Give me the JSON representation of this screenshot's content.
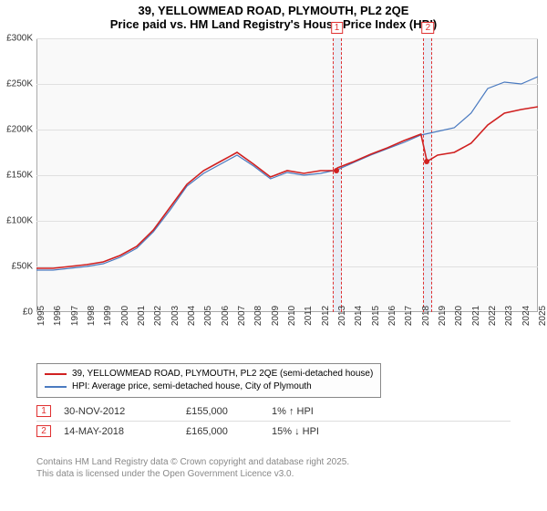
{
  "title_line1": "39, YELLOWMEAD ROAD, PLYMOUTH, PL2 2QE",
  "title_line2": "Price paid vs. HM Land Registry's House Price Index (HPI)",
  "chart": {
    "type": "line",
    "background_color": "#f9f9f9",
    "grid_color": "#e0e0e0",
    "border_color": "#aaaaaa",
    "ylim": [
      0,
      300000
    ],
    "ytick_step": 50000,
    "yticks": [
      "£0",
      "£50K",
      "£100K",
      "£150K",
      "£200K",
      "£250K",
      "£300K"
    ],
    "xlim": [
      1995,
      2025
    ],
    "xticks": [
      1995,
      1996,
      1997,
      1998,
      1999,
      2000,
      2001,
      2002,
      2003,
      2004,
      2005,
      2006,
      2007,
      2008,
      2009,
      2010,
      2011,
      2012,
      2013,
      2014,
      2015,
      2016,
      2017,
      2018,
      2019,
      2020,
      2021,
      2022,
      2023,
      2024,
      2025
    ],
    "series": [
      {
        "name": "property",
        "label": "39, YELLOWMEAD ROAD, PLYMOUTH, PL2 2QE (semi-detached house)",
        "color": "#d02020",
        "line_width": 1.6,
        "data": [
          [
            1995,
            48000
          ],
          [
            1996,
            48000
          ],
          [
            1997,
            50000
          ],
          [
            1998,
            52000
          ],
          [
            1999,
            55000
          ],
          [
            2000,
            62000
          ],
          [
            2001,
            72000
          ],
          [
            2002,
            90000
          ],
          [
            2003,
            115000
          ],
          [
            2004,
            140000
          ],
          [
            2005,
            155000
          ],
          [
            2006,
            165000
          ],
          [
            2007,
            175000
          ],
          [
            2008,
            162000
          ],
          [
            2009,
            148000
          ],
          [
            2010,
            155000
          ],
          [
            2011,
            152000
          ],
          [
            2012,
            155000
          ],
          [
            2012.92,
            155000
          ],
          [
            2013,
            158000
          ],
          [
            2014,
            165000
          ],
          [
            2015,
            173000
          ],
          [
            2016,
            180000
          ],
          [
            2017,
            188000
          ],
          [
            2018,
            195000
          ],
          [
            2018.37,
            165000
          ],
          [
            2019,
            172000
          ],
          [
            2020,
            175000
          ],
          [
            2021,
            185000
          ],
          [
            2022,
            205000
          ],
          [
            2023,
            218000
          ],
          [
            2024,
            222000
          ],
          [
            2025,
            225000
          ]
        ]
      },
      {
        "name": "hpi",
        "label": "HPI: Average price, semi-detached house, City of Plymouth",
        "color": "#4a7ac0",
        "line_width": 1.2,
        "data": [
          [
            1995,
            46000
          ],
          [
            1996,
            46000
          ],
          [
            1997,
            48000
          ],
          [
            1998,
            50000
          ],
          [
            1999,
            53000
          ],
          [
            2000,
            60000
          ],
          [
            2001,
            70000
          ],
          [
            2002,
            88000
          ],
          [
            2003,
            112000
          ],
          [
            2004,
            138000
          ],
          [
            2005,
            152000
          ],
          [
            2006,
            162000
          ],
          [
            2007,
            172000
          ],
          [
            2008,
            160000
          ],
          [
            2009,
            146000
          ],
          [
            2010,
            153000
          ],
          [
            2011,
            150000
          ],
          [
            2012,
            152000
          ],
          [
            2013,
            156000
          ],
          [
            2014,
            164000
          ],
          [
            2015,
            172000
          ],
          [
            2016,
            179000
          ],
          [
            2017,
            186000
          ],
          [
            2018,
            194000
          ],
          [
            2019,
            198000
          ],
          [
            2020,
            202000
          ],
          [
            2021,
            218000
          ],
          [
            2022,
            245000
          ],
          [
            2023,
            252000
          ],
          [
            2024,
            250000
          ],
          [
            2025,
            258000
          ]
        ]
      }
    ],
    "markers": [
      {
        "idx": "1",
        "year": 2012.92,
        "value": 155000
      },
      {
        "idx": "2",
        "year": 2018.37,
        "value": 165000
      }
    ]
  },
  "legend": {
    "items": [
      {
        "color": "#d02020",
        "label": "39, YELLOWMEAD ROAD, PLYMOUTH, PL2 2QE (semi-detached house)"
      },
      {
        "color": "#4a7ac0",
        "label": "HPI: Average price, semi-detached house, City of Plymouth"
      }
    ]
  },
  "sales": [
    {
      "idx": "1",
      "date": "30-NOV-2012",
      "price": "£155,000",
      "diff": "1% ↑ HPI"
    },
    {
      "idx": "2",
      "date": "14-MAY-2018",
      "price": "£165,000",
      "diff": "15% ↓ HPI"
    }
  ],
  "footnote_line1": "Contains HM Land Registry data © Crown copyright and database right 2025.",
  "footnote_line2": "This data is licensed under the Open Government Licence v3.0."
}
